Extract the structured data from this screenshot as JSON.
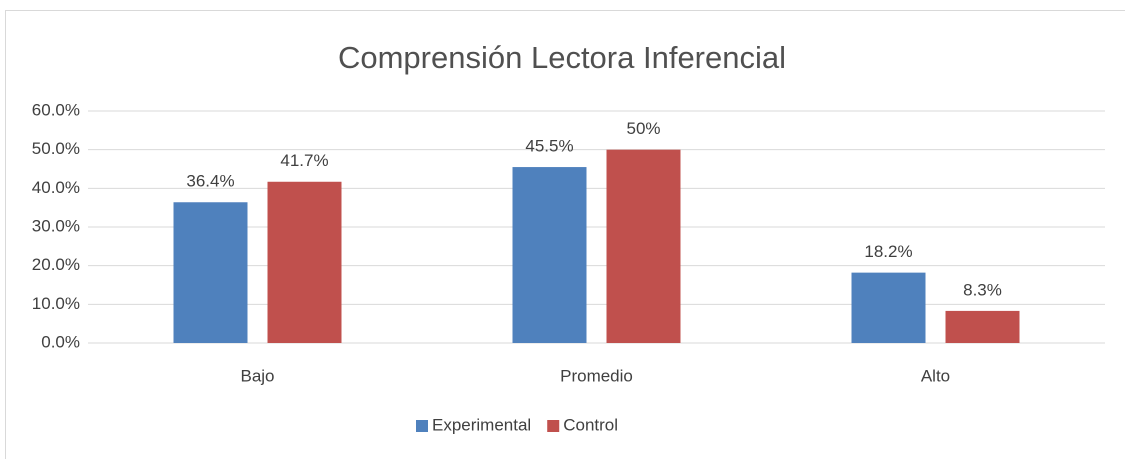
{
  "chart_data": {
    "type": "bar",
    "title": "Comprensión Lectora Inferencial",
    "categories": [
      "Bajo",
      "Promedio",
      "Alto"
    ],
    "series": [
      {
        "name": "Experimental",
        "color": "#4f81bd",
        "values": [
          36.4,
          45.5,
          18.2
        ],
        "value_labels": [
          "36.4%",
          "45.5%",
          "18.2%"
        ]
      },
      {
        "name": "Control",
        "color": "#c0504d",
        "values": [
          41.7,
          50,
          8.3
        ],
        "value_labels": [
          "41.7%",
          "50%",
          "8.3%"
        ]
      }
    ],
    "ylim": [
      0,
      60
    ],
    "yticks": [
      {
        "value": 0,
        "label": "0.0%"
      },
      {
        "value": 10,
        "label": "10.0%"
      },
      {
        "value": 20,
        "label": "20.0%"
      },
      {
        "value": 30,
        "label": "30.0%"
      },
      {
        "value": 40,
        "label": "40.0%"
      },
      {
        "value": 50,
        "label": "50.0%"
      },
      {
        "value": 60,
        "label": "60.0%"
      }
    ],
    "grid": true,
    "legend": "bottom"
  }
}
